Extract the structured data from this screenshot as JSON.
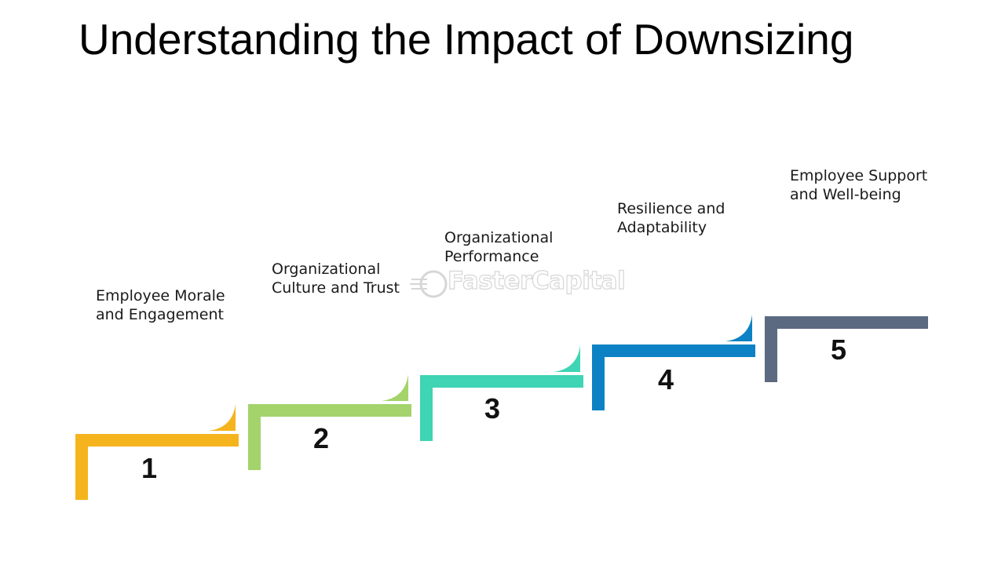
{
  "title": "Understanding the Impact of Downsizing",
  "watermark": {
    "text": "FasterCapital",
    "logo_icon": "fastercapital-logo-icon"
  },
  "steps": [
    {
      "number": "1",
      "label_lines": [
        "Employee Morale",
        "and Engagement"
      ],
      "color": "#F5B41E"
    },
    {
      "number": "2",
      "label_lines": [
        "Organizational",
        "Culture and Trust"
      ],
      "color": "#A3D36A"
    },
    {
      "number": "3",
      "label_lines": [
        "Organizational",
        "Performance"
      ],
      "color": "#3FD4B4"
    },
    {
      "number": "4",
      "label_lines": [
        "Resilience and",
        "Adaptability"
      ],
      "color": "#0C82C4"
    },
    {
      "number": "5",
      "label_lines": [
        "Employee Support",
        "and Well-being"
      ],
      "color": "#5B6A80"
    }
  ]
}
